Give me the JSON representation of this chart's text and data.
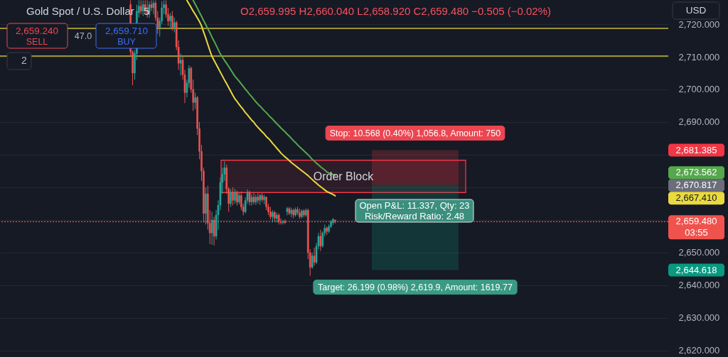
{
  "chart_data": {
    "type": "candlestick",
    "title": "Gold Spot / U.S. Dollar · 5",
    "subtitle": "O2,659.995 H2,660.040 L2,658.920 C2,659.480 −0.505 (−0.02%)",
    "categories": [
      null,
      null,
      null,
      null,
      null,
      null,
      null,
      null,
      null,
      null,
      null,
      null,
      null,
      null,
      null,
      null,
      null,
      null,
      null,
      null,
      null,
      null,
      null,
      null,
      null,
      null,
      null,
      null,
      null,
      null,
      null,
      null,
      null,
      null,
      null,
      null,
      null,
      null,
      null,
      null,
      null,
      null,
      null,
      null,
      null,
      null,
      null,
      null,
      null,
      null,
      null,
      null,
      null,
      null,
      null,
      null,
      null,
      null,
      null,
      null,
      null,
      null,
      null,
      null,
      null,
      null,
      null,
      null,
      null,
      null,
      null,
      null,
      null,
      null,
      null,
      null,
      null,
      null,
      null,
      null,
      null,
      null,
      null,
      null,
      null,
      null,
      null,
      null,
      null,
      null,
      null,
      null,
      null,
      null,
      null,
      null,
      null,
      null,
      null,
      null,
      null,
      null,
      null,
      null,
      null,
      null,
      null,
      null,
      null,
      null,
      null,
      null,
      null,
      null,
      null,
      null,
      null,
      null,
      null,
      null,
      null,
      null,
      null,
      null,
      null,
      null,
      null,
      null,
      null,
      null,
      null,
      null,
      null,
      null,
      null,
      null,
      null,
      null,
      null,
      null,
      null,
      null,
      null,
      null,
      null,
      null,
      null,
      null,
      null,
      null,
      null,
      null,
      null,
      null,
      null,
      null,
      null,
      null,
      null,
      null,
      null,
      null,
      null,
      null,
      null,
      null,
      null,
      null,
      null,
      null,
      null,
      null,
      null,
      null,
      null,
      null,
      null,
      null,
      null,
      null,
      null,
      null,
      null,
      null,
      null,
      null,
      null,
      null,
      null,
      null,
      null,
      null,
      null,
      null,
      null,
      null,
      null,
      null,
      null,
      null,
      null,
      null,
      null,
      null,
      null,
      null,
      null,
      null,
      null,
      null,
      null,
      null,
      null,
      null,
      null,
      null,
      null,
      null,
      null,
      null,
      null,
      null,
      null,
      null,
      null,
      null,
      null,
      null,
      null,
      null,
      null,
      null,
      null,
      null,
      null,
      null,
      null,
      null,
      null,
      null,
      null,
      null,
      null,
      null,
      null,
      null,
      null,
      null,
      null,
      null,
      null,
      null,
      null,
      null,
      null,
      null,
      null,
      null,
      null,
      null,
      null,
      null,
      null,
      null,
      null,
      null,
      null,
      null,
      null,
      null,
      null,
      null,
      null,
      null,
      null,
      null,
      null,
      null,
      null,
      null,
      null,
      null,
      null,
      null,
      null,
      null,
      null,
      null,
      null,
      null,
      null,
      null,
      null,
      null,
      null,
      null,
      null,
      null,
      null,
      null,
      null,
      null,
      null,
      null,
      null,
      null,
      null,
      null,
      null,
      null,
      null,
      null,
      null,
      null,
      null,
      null,
      null,
      null,
      null,
      null
    ],
    "ohlc": [
      null,
      null,
      null,
      null,
      null,
      null,
      null,
      null,
      null,
      null,
      null,
      null,
      null,
      null,
      null,
      null,
      null,
      null,
      null,
      null,
      null,
      null,
      null,
      null,
      null,
      null,
      null,
      null,
      null,
      null,
      null,
      null,
      null,
      null,
      null,
      null,
      null,
      null,
      null,
      null,
      null,
      null,
      null,
      null,
      null,
      null,
      null,
      null,
      null,
      null,
      null,
      null,
      null,
      null,
      null,
      null,
      null,
      null,
      null,
      null,
      null,
      null,
      [
        2726,
        2727.3,
        2710.5,
        2711.5
      ],
      [
        2711.5,
        2712,
        2701.3,
        2705
      ],
      [
        2705,
        2712,
        2703,
        2711
      ],
      [
        2711,
        2726,
        2709,
        2724
      ],
      [
        2724,
        2727.3,
        2722,
        2725.5
      ],
      [
        2725.5,
        2727.3,
        2723,
        2724
      ],
      [
        2724,
        2727.3,
        2722.5,
        2726
      ],
      [
        2726,
        2727.3,
        2723.5,
        2724.5
      ],
      [
        2724.5,
        2727.3,
        2722,
        2723
      ],
      [
        2723,
        2727,
        2722,
        2726
      ],
      [
        2726,
        2727.3,
        2724,
        2725
      ],
      [
        2725,
        2727.3,
        2723,
        2726.5
      ],
      [
        2726.5,
        2727.3,
        2721,
        2722
      ],
      [
        2722,
        2724,
        2717,
        2719
      ],
      [
        2719,
        2722,
        2716.2,
        2721
      ],
      [
        2721,
        2727,
        2720,
        2725
      ],
      [
        2725,
        2727.3,
        2723,
        2726
      ],
      [
        2726,
        2727.3,
        2722,
        2723
      ],
      [
        2723,
        2725,
        2719.5,
        2721
      ],
      [
        2721,
        2723.5,
        2718.5,
        2722.5
      ],
      [
        2722.5,
        2724,
        2718,
        2719
      ],
      [
        2719,
        2722,
        2717.5,
        2720.5
      ],
      [
        2720.5,
        2721,
        2712,
        2713
      ],
      [
        2713,
        2715,
        2706,
        2708
      ],
      [
        2708,
        2711,
        2704.2,
        2709
      ],
      [
        2709,
        2710,
        2703,
        2704.5
      ],
      [
        2704.5,
        2706,
        2695.8,
        2699
      ],
      [
        2699,
        2703,
        2697.5,
        2702
      ],
      [
        2702,
        2707.4,
        2700.5,
        2706.5
      ],
      [
        2706.5,
        2707,
        2699,
        2700
      ],
      [
        2700,
        2703,
        2693.4,
        2696
      ],
      [
        2696,
        2699,
        2694,
        2697.5
      ],
      [
        2697.5,
        2698,
        2686,
        2688
      ],
      [
        2688,
        2690,
        2678.6,
        2681
      ],
      [
        2681,
        2683,
        2672,
        2675
      ],
      [
        2675,
        2676,
        2659.2,
        2662
      ],
      [
        2662,
        2670,
        2658.6,
        2668
      ],
      [
        2668,
        2670.5,
        2657,
        2659
      ],
      [
        2659,
        2663,
        2652.6,
        2656
      ],
      [
        2656,
        2662.5,
        2652.4,
        2660
      ],
      [
        2660,
        2661,
        2652.2,
        2655
      ],
      [
        2655,
        2663,
        2654,
        2661.5
      ],
      [
        2661.5,
        2666,
        2657,
        2664.5
      ],
      [
        2664.5,
        2673,
        2663,
        2671.5
      ],
      [
        2671.5,
        2676,
        2668,
        2674
      ],
      [
        2674,
        2678,
        2672,
        2676
      ],
      [
        2676,
        2677,
        2668,
        2669.5
      ],
      [
        2669.5,
        2670,
        2662.5,
        2665
      ],
      [
        2665,
        2669.5,
        2664,
        2668.5
      ],
      [
        2668.5,
        2670,
        2664.5,
        2666
      ],
      [
        2666,
        2669.5,
        2665,
        2668.5
      ],
      [
        2668.5,
        2669,
        2664.4,
        2665.5
      ],
      [
        2665.5,
        2668.5,
        2664.8,
        2667.5
      ],
      [
        2667.5,
        2668.7,
        2663,
        2664
      ],
      [
        2664,
        2665,
        2661.4,
        2662.5
      ],
      [
        2662.5,
        2667,
        2662,
        2666
      ],
      [
        2666,
        2669.4,
        2665,
        2668.5
      ],
      [
        2668.5,
        2669,
        2664.5,
        2665.5
      ],
      [
        2665.5,
        2668,
        2664.4,
        2667
      ],
      [
        2667,
        2668.3,
        2664.8,
        2665.5
      ],
      [
        2665.5,
        2667.8,
        2664.6,
        2667
      ],
      [
        2667,
        2668.2,
        2665,
        2666
      ],
      [
        2666,
        2668,
        2664.6,
        2667.5
      ],
      [
        2667.5,
        2668.3,
        2665.5,
        2666.2
      ],
      [
        2666.2,
        2667.8,
        2664.8,
        2667
      ],
      [
        2667,
        2667.2,
        2663,
        2664
      ],
      [
        2664,
        2665,
        2661.5,
        2662.5
      ],
      [
        2662.5,
        2664,
        2660.2,
        2661
      ],
      [
        2661,
        2663,
        2659.2,
        2662.3
      ],
      [
        2662.3,
        2662.8,
        2659.5,
        2660.5
      ],
      [
        2660.5,
        2662.3,
        2659.2,
        2661.5
      ],
      [
        2661.5,
        2662,
        2658.6,
        2659.5
      ],
      [
        2659.5,
        2660.5,
        2658.6,
        2659.2
      ],
      [
        2659.2,
        2660,
        2658.6,
        2659.6
      ],
      [
        2659.6,
        2660.2,
        2658.8,
        2659.2
      ],
      [
        2662.5,
        2664,
        2661.4,
        2663.5
      ],
      [
        2663.5,
        2664,
        2661.5,
        2662
      ],
      [
        2662,
        2663.8,
        2660.8,
        2663
      ],
      [
        2663,
        2663.5,
        2660.5,
        2661.5
      ],
      [
        2661.5,
        2663.8,
        2661,
        2663.2
      ],
      [
        2663.2,
        2664,
        2661.5,
        2662.2
      ],
      [
        2662.2,
        2663.5,
        2660.3,
        2661
      ],
      [
        2661,
        2663.2,
        2660.5,
        2662.8
      ],
      [
        2662.8,
        2663.3,
        2660.8,
        2661.5
      ],
      [
        2661.5,
        2663.5,
        2661,
        2663
      ],
      [
        2663,
        2663.5,
        2648,
        2650
      ],
      [
        2650,
        2651,
        2642.9,
        2645.5
      ],
      [
        2645.5,
        2650,
        2645,
        2649
      ],
      [
        2649,
        2651.5,
        2646,
        2647
      ],
      [
        2647,
        2653,
        2646.5,
        2652
      ],
      [
        2652,
        2656,
        2651,
        2655
      ],
      [
        2655,
        2657,
        2650.5,
        2652
      ],
      [
        2652,
        2656.5,
        2651.5,
        2656
      ],
      [
        2656,
        2658.6,
        2655,
        2657.5
      ],
      [
        2657.5,
        2658,
        2655.4,
        2656.5
      ],
      [
        2656.5,
        2658.6,
        2656,
        2658
      ],
      [
        2658,
        2660,
        2657.5,
        2659.5
      ],
      [
        2659.2,
        2660.6,
        2658.5,
        2660.2
      ],
      [
        2659.995,
        2660.04,
        2658.92,
        2659.48
      ],
      null,
      null,
      null,
      null,
      null,
      null,
      null,
      null,
      null,
      null,
      null,
      null,
      null,
      null,
      null,
      null,
      null,
      null,
      null,
      null,
      null,
      null,
      null,
      null,
      null,
      null,
      null,
      null,
      null,
      null,
      null,
      null,
      null,
      null,
      null,
      null,
      null,
      null,
      null,
      null,
      null,
      null,
      null,
      null,
      null,
      null,
      null,
      null,
      null,
      null,
      null,
      null,
      null,
      null,
      null,
      null,
      null,
      null,
      null,
      null,
      null,
      null,
      null,
      null,
      null,
      null,
      null,
      null,
      null,
      null,
      null,
      null,
      null,
      null,
      null,
      null,
      null,
      null,
      null,
      null,
      null,
      null,
      null,
      null,
      null,
      null,
      null,
      null,
      null,
      null,
      null,
      null,
      null,
      null,
      null,
      null,
      null,
      null,
      null,
      null,
      null,
      null,
      null,
      null,
      null,
      null,
      null,
      null,
      null,
      null,
      null,
      null,
      null,
      null,
      null,
      null,
      null,
      null,
      null,
      null,
      null,
      null,
      null,
      null,
      null,
      null,
      null,
      null,
      null,
      null,
      null,
      null,
      null,
      null,
      null,
      null,
      null,
      null,
      null,
      null,
      null,
      null,
      null,
      null,
      null,
      null,
      null,
      null,
      null,
      null,
      null,
      null,
      null,
      null,
      null,
      null,
      null,
      null,
      null
    ],
    "colors": [
      null,
      null,
      null,
      null,
      null,
      null,
      null,
      null,
      null,
      null,
      null,
      null,
      null,
      null,
      null,
      null,
      null,
      null,
      null,
      null,
      null,
      null,
      null,
      null,
      null,
      null,
      null,
      null,
      null,
      null,
      null,
      null,
      null,
      null,
      null,
      null,
      null,
      null,
      null,
      null,
      null,
      null,
      null,
      null,
      null,
      null,
      null,
      null,
      null,
      null,
      null,
      null,
      null,
      null,
      null,
      null,
      null,
      null,
      null,
      null,
      null,
      null,
      "#ef5350",
      "#ef5350",
      "#26a69a",
      "#26a69a",
      "#26a69a",
      "#ef5350",
      "#26a69a",
      "#ef5350",
      "#ef5350",
      "#26a69a",
      "#ef5350",
      "#26a69a",
      "#ef5350",
      "#ef5350",
      "#26a69a",
      "#26a69a",
      "#26a69a",
      "#ef5350",
      "#ef5350",
      "#26a69a",
      "#ef5350",
      "#26a69a",
      "#ef5350",
      "#ef5350",
      "#26a69a",
      "#ef5350",
      "#ef5350",
      "#26a69a",
      "#26a69a",
      "#ef5350",
      "#ef5350",
      "#26a69a",
      "#ef5350",
      "#ef5350",
      "#ef5350",
      "#ef5350",
      "#26a69a",
      "#ef5350",
      "#ef5350",
      "#26a69a",
      "#ef5350",
      "#26a69a",
      "#26a69a",
      "#26a69a",
      "#26a69a",
      "#26a69a",
      "#ef5350",
      "#ef5350",
      "#26a69a",
      "#ef5350",
      "#26a69a",
      "#ef5350",
      "#26a69a",
      "#ef5350",
      "#ef5350",
      "#26a69a",
      "#26a69a",
      "#ef5350",
      "#26a69a",
      "#ef5350",
      "#26a69a",
      "#ef5350",
      "#26a69a",
      "#ef5350",
      "#26a69a",
      "#ef5350",
      "#ef5350",
      "#ef5350",
      "#26a69a",
      "#ef5350",
      "#26a69a",
      "#ef5350",
      "#ef5350",
      "#26a69a",
      "#ef5350",
      "#26a69a",
      "#ef5350",
      "#26a69a",
      "#ef5350",
      "#26a69a",
      "#ef5350",
      "#ef5350",
      "#26a69a",
      "#ef5350",
      "#26a69a",
      "#ef5350",
      "#ef5350",
      "#26a69a",
      "#ef5350",
      "#26a69a",
      "#26a69a",
      "#ef5350",
      "#26a69a",
      "#26a69a",
      "#ef5350",
      "#26a69a",
      "#26a69a",
      "#26a69a",
      "#ef5350",
      null,
      null,
      null,
      null,
      null,
      null,
      null,
      null,
      null,
      null,
      null,
      null,
      null,
      null,
      null,
      null,
      null,
      null,
      null,
      null,
      null,
      null,
      null,
      null,
      null,
      null,
      null,
      null,
      null,
      null,
      null,
      null,
      null,
      null,
      null,
      null,
      null,
      null,
      null,
      null,
      null,
      null,
      null,
      null,
      null,
      null,
      null,
      null,
      null,
      null,
      null,
      null,
      null,
      null,
      null,
      null,
      null,
      null,
      null,
      null,
      null,
      null,
      null,
      null,
      null,
      null,
      null,
      null,
      null,
      null,
      null,
      null,
      null,
      null,
      null,
      null,
      null,
      null,
      null,
      null,
      null,
      null,
      null,
      null,
      null,
      null,
      null,
      null,
      null,
      null,
      null,
      null,
      null,
      null,
      null,
      null,
      null,
      null,
      null,
      null,
      null,
      null,
      null,
      null,
      null,
      null,
      null,
      null,
      null,
      null,
      null,
      null,
      null,
      null,
      null,
      null,
      null,
      null,
      null,
      null,
      null,
      null,
      null,
      null,
      null,
      null,
      null,
      null,
      null,
      null,
      null,
      null,
      null,
      null,
      null,
      null,
      null,
      null,
      null,
      null,
      null,
      null,
      null,
      null,
      null,
      null,
      null,
      null,
      null,
      null,
      null,
      null,
      null,
      null,
      null,
      null,
      null,
      null,
      null
    ],
    "series": [
      {
        "type": "line",
        "color": "#55a84c",
        "values": [
          null,
          null,
          null,
          null,
          null,
          null,
          null,
          null,
          null,
          null,
          null,
          null,
          null,
          null,
          null,
          null,
          null,
          null,
          null,
          null,
          null,
          null,
          null,
          null,
          null,
          null,
          null,
          null,
          null,
          null,
          null,
          null,
          null,
          null,
          null,
          null,
          null,
          null,
          null,
          null,
          null,
          null,
          null,
          null,
          null,
          null,
          null,
          null,
          null,
          null,
          null,
          null,
          null,
          null,
          null,
          null,
          null,
          null,
          null,
          null,
          null,
          null,
          null,
          null,
          null,
          null,
          null,
          null,
          null,
          null,
          null,
          null,
          null,
          null,
          null,
          null,
          null,
          null,
          null,
          null,
          null,
          null,
          null,
          null,
          null,
          null,
          null,
          null,
          null,
          null,
          null,
          null,
          2727.3,
          2726.1,
          2724.9,
          2723.6,
          2722.4,
          2721.1,
          2719.9,
          2718.6,
          2717.4,
          2716.0,
          2714.8,
          2713.5,
          2712.2,
          2710.9,
          2709.9,
          2708.9,
          2708.0,
          2707.0,
          2706.0,
          2705.0,
          2704.0,
          2703.3,
          2702.5,
          2701.7,
          2700.9,
          2700.1,
          2699.3,
          2698.5,
          2697.8,
          2697.0,
          2696.2,
          2695.5,
          2694.9,
          2694.2,
          2693.5,
          2692.9,
          2692.2,
          2691.5,
          2690.9,
          2690.2,
          2689.5,
          2688.9,
          2688.2,
          2687.6,
          2687.0,
          2686.3,
          2685.7,
          2685.0,
          2684.3,
          2683.7,
          2683.0,
          2682.4,
          2681.8,
          2681.2,
          2680.6,
          2680.0,
          2679.3,
          2678.6,
          2678.0,
          2677.4,
          2676.9,
          2676.3,
          2675.8,
          2675.3,
          2674.7,
          2674.4,
          2674.2,
          2673.9,
          2673.6,
          null,
          null,
          null,
          null,
          null,
          null,
          null,
          null,
          null,
          null,
          null,
          null,
          null,
          null,
          null,
          null,
          null,
          null,
          null,
          null,
          null,
          null,
          null,
          null,
          null,
          null,
          null,
          null,
          null,
          null,
          null,
          null,
          null,
          null,
          null,
          null,
          null,
          null,
          null,
          null,
          null,
          null,
          null,
          null,
          null,
          null,
          null,
          null,
          null,
          null,
          null,
          null,
          null,
          null,
          null,
          null,
          null,
          null,
          null,
          null,
          null,
          null,
          null,
          null,
          null,
          null,
          null,
          null,
          null,
          null,
          null,
          null,
          null,
          null,
          null,
          null,
          null,
          null,
          null,
          null,
          null,
          null,
          null,
          null,
          null,
          null,
          null,
          null,
          null,
          null,
          null,
          null,
          null,
          null,
          null,
          null,
          null,
          null,
          null,
          null,
          null,
          null,
          null,
          null,
          null,
          null,
          null,
          null,
          null,
          null,
          null,
          null,
          null,
          null,
          null,
          null,
          null,
          null,
          null,
          null,
          null,
          null,
          null,
          null,
          null,
          null,
          null,
          null,
          null,
          null,
          null,
          null,
          null,
          null,
          null,
          null,
          null,
          null,
          null,
          null,
          null,
          null,
          null,
          null,
          null,
          null,
          null,
          null,
          null,
          null,
          null,
          null,
          null,
          null,
          null,
          null,
          null,
          null,
          null
        ]
      },
      {
        "type": "line",
        "color": "#ead93f",
        "values": [
          null,
          null,
          null,
          null,
          null,
          null,
          null,
          null,
          null,
          null,
          null,
          null,
          null,
          null,
          null,
          null,
          null,
          null,
          null,
          null,
          null,
          null,
          null,
          null,
          null,
          null,
          null,
          null,
          null,
          null,
          null,
          null,
          null,
          null,
          null,
          null,
          null,
          null,
          null,
          null,
          null,
          null,
          null,
          null,
          null,
          null,
          null,
          null,
          null,
          null,
          null,
          null,
          null,
          null,
          null,
          null,
          null,
          null,
          null,
          null,
          null,
          null,
          null,
          null,
          null,
          null,
          null,
          null,
          null,
          null,
          null,
          null,
          null,
          null,
          null,
          null,
          null,
          null,
          null,
          null,
          null,
          null,
          null,
          null,
          null,
          null,
          null,
          null,
          null,
          2727.3,
          2726.2,
          2725.1,
          2724.0,
          2723.0,
          2721.9,
          2720.8,
          2719.5,
          2717.6,
          2715.8,
          2713.8,
          2711.9,
          2710.1,
          2708.9,
          2707.7,
          2706.5,
          2705.3,
          2704.1,
          2702.9,
          2701.8,
          2700.6,
          2699.4,
          2698.2,
          2697.1,
          2696.3,
          2695.4,
          2694.6,
          2693.8,
          2692.9,
          2692.2,
          2691.4,
          2690.6,
          2690.0,
          2689.1,
          2688.4,
          2687.7,
          2687.0,
          2686.4,
          2685.6,
          2685.0,
          2684.3,
          2683.5,
          2682.8,
          2682.0,
          2681.3,
          2680.5,
          2679.9,
          2679.3,
          2678.8,
          2678.2,
          2677.6,
          2677.1,
          2676.6,
          2676.1,
          2675.6,
          2675.1,
          2674.6,
          2674.1,
          2673.6,
          2673.0,
          2672.4,
          2671.8,
          2671.3,
          2670.7,
          2670.2,
          2669.7,
          2669.2,
          2668.7,
          2668.4,
          2668.1,
          2667.8,
          2667.4,
          null,
          null,
          null,
          null,
          null,
          null,
          null,
          null,
          null,
          null,
          null,
          null,
          null,
          null,
          null,
          null,
          null,
          null,
          null,
          null,
          null,
          null,
          null,
          null,
          null,
          null,
          null,
          null,
          null,
          null,
          null,
          null,
          null,
          null,
          null,
          null,
          null,
          null,
          null,
          null,
          null,
          null,
          null,
          null,
          null,
          null,
          null,
          null,
          null,
          null,
          null,
          null,
          null,
          null,
          null,
          null,
          null,
          null,
          null,
          null,
          null,
          null,
          null,
          null,
          null,
          null,
          null,
          null,
          null,
          null,
          null,
          null,
          null,
          null,
          null,
          null,
          null,
          null,
          null,
          null,
          null,
          null,
          null,
          null,
          null,
          null,
          null,
          null,
          null,
          null,
          null,
          null,
          null,
          null,
          null,
          null,
          null,
          null,
          null,
          null,
          null,
          null,
          null,
          null,
          null,
          null,
          null,
          null,
          null,
          null,
          null,
          null,
          null,
          null,
          null,
          null,
          null,
          null,
          null,
          null,
          null,
          null,
          null,
          null,
          null,
          null,
          null,
          null,
          null,
          null,
          null,
          null,
          null,
          null,
          null,
          null,
          null,
          null,
          null,
          null,
          null,
          null,
          null,
          null,
          null,
          null,
          null,
          null,
          null,
          null,
          null,
          null,
          null,
          null,
          null,
          null,
          null,
          null,
          null
        ]
      }
    ],
    "ylim": [
      2618,
      2727.4
    ],
    "yticks": [
      {
        "value": 2620,
        "label": "2,620.000"
      },
      {
        "value": 2630,
        "label": "2,630.000"
      },
      {
        "value": 2640,
        "label": "2,640.000"
      },
      {
        "value": 2650,
        "label": "2,650.000"
      },
      {
        "value": 2660,
        "label": null
      },
      {
        "value": 2670,
        "label": null
      },
      {
        "value": 2680,
        "label": null
      },
      {
        "value": 2690,
        "label": "2,690.000"
      },
      {
        "value": 2700,
        "label": "2,700.000"
      },
      {
        "value": 2710,
        "label": "2,710.000"
      },
      {
        "value": 2720,
        "label": "2,720.000"
      }
    ],
    "grid": "y",
    "tick_labels": "y",
    "ref_lines": [
      {
        "axis": "y",
        "value": 2718.7,
        "color": "#cbbd35"
      },
      {
        "axis": "y",
        "value": 2710.2,
        "color": "#cbbd35"
      },
      {
        "axis": "y",
        "value": 2659.48,
        "label": "2,659.480",
        "color": "#f0524d",
        "line_style": "dotted"
      }
    ],
    "bands": [
      {
        "axis": "y",
        "from": 2668.4,
        "to": 2678.3,
        "label": "Order Block",
        "color": "#f23645"
      },
      {
        "axis": "y",
        "from": 2670.817,
        "to": 2681.385,
        "label": "Stop: 10.568 (0.40%) 1,056.8, Amount: 750",
        "color": "#f23645"
      },
      {
        "axis": "y",
        "from": 2644.618,
        "to": 2670.817,
        "label": "Target: 26.199 (0.98%) 2,619.9, Amount: 1619.77",
        "color": "#089981"
      }
    ],
    "annotations": [
      "2,659.240",
      "SELL",
      "47.0",
      "2,659.710",
      "BUY",
      "2",
      "USD",
      "03:55",
      "Open P&L: 11.337, Qty: 23",
      "Risk/Reward Ratio: 2.48",
      "2,681.385",
      "2,673.562",
      "2,670.817",
      "2,667.410",
      "2,644.618"
    ]
  }
}
